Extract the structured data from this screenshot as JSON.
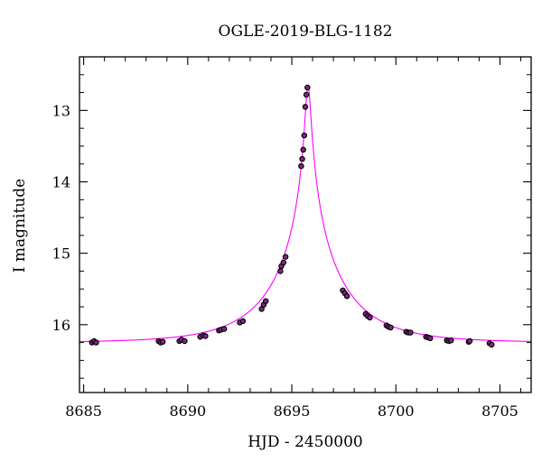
{
  "chart_data": {
    "type": "scatter",
    "title": "OGLE-2019-BLG-1182",
    "xlabel": "HJD - 2450000",
    "ylabel": "I magnitude",
    "xlim": [
      8684.8,
      8706.5
    ],
    "ylim": [
      16.95,
      12.25
    ],
    "y_inverted": true,
    "grid": false,
    "x_ticks": [
      8685,
      8690,
      8695,
      8700,
      8705
    ],
    "y_ticks": [
      13,
      14,
      15,
      16
    ],
    "x_minor_step": 1,
    "y_minor_step": 0.25,
    "colors": {
      "points": "#000000",
      "points_fill": "#7a2a7a",
      "model": "#ff00ff"
    },
    "model": {
      "t0": 8695.78,
      "baseline_mag": 16.25,
      "peak_mag": 12.65,
      "tE": 3.4
    },
    "series": [
      {
        "type": "points",
        "x": [
          8685.4,
          8685.5,
          8685.6,
          8688.6,
          8688.7,
          8688.8,
          8689.6,
          8689.7,
          8689.85,
          8690.6,
          8690.75,
          8690.85,
          8691.5,
          8691.6,
          8691.75,
          8692.5,
          8692.65,
          8693.55,
          8693.65,
          8693.75,
          8694.45,
          8694.5,
          8694.6,
          8694.7,
          8695.45,
          8695.5,
          8695.55,
          8695.6,
          8695.65,
          8695.7,
          8695.75,
          8697.45,
          8697.55,
          8697.65,
          8698.55,
          8698.65,
          8698.75,
          8699.55,
          8699.65,
          8699.75,
          8700.5,
          8700.6,
          8700.7,
          8701.45,
          8701.55,
          8701.65,
          8702.45,
          8702.55,
          8702.65,
          8703.5,
          8703.55,
          8704.5,
          8704.6
        ],
        "y": [
          16.25,
          16.23,
          16.25,
          16.23,
          16.25,
          16.24,
          16.23,
          16.21,
          16.23,
          16.17,
          16.15,
          16.16,
          16.08,
          16.07,
          16.06,
          15.97,
          15.95,
          15.78,
          15.72,
          15.67,
          15.25,
          15.18,
          15.13,
          15.05,
          13.78,
          13.68,
          13.55,
          13.35,
          12.95,
          12.78,
          12.68,
          15.52,
          15.56,
          15.6,
          15.85,
          15.88,
          15.9,
          16.01,
          16.03,
          16.04,
          16.1,
          16.11,
          16.11,
          16.17,
          16.18,
          16.19,
          16.22,
          16.23,
          16.22,
          16.24,
          16.23,
          16.26,
          16.28
        ]
      }
    ]
  }
}
